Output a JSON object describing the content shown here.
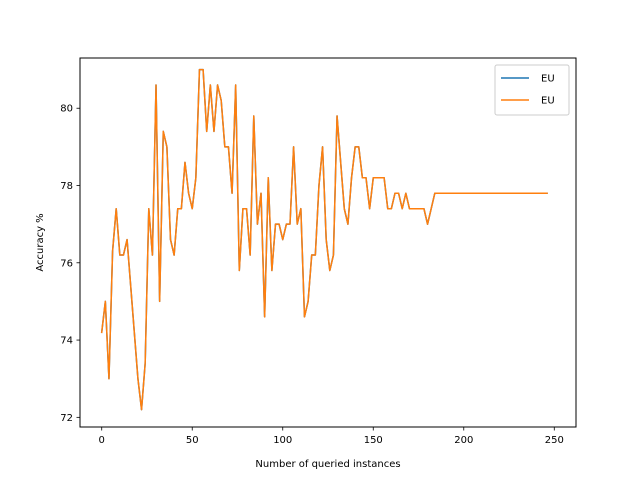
{
  "chart_data": {
    "type": "line",
    "title": "",
    "xlabel": "Number of queried instances",
    "ylabel": "Accuracy %",
    "xlim": [
      -12,
      262
    ],
    "ylim": [
      71.75,
      81.3
    ],
    "xticks": [
      0,
      50,
      100,
      150,
      200,
      250
    ],
    "yticks": [
      72,
      74,
      76,
      78,
      80
    ],
    "grid": false,
    "legend_position": "top-right",
    "series": [
      {
        "name": "EU",
        "color": "#1f77b4",
        "x": [
          0,
          2,
          4,
          6,
          8,
          10,
          12,
          14,
          16,
          18,
          20,
          22,
          24,
          26,
          28,
          30,
          32,
          34,
          36,
          38,
          40,
          42,
          44,
          46,
          48,
          50,
          52,
          54,
          56,
          58,
          60,
          62,
          64,
          66,
          68,
          70,
          72,
          74,
          76,
          78,
          80,
          82,
          84,
          86,
          88,
          90,
          92,
          94,
          96,
          98,
          100,
          102,
          104,
          106,
          108,
          110,
          112,
          114,
          116,
          118,
          120,
          122,
          124,
          126,
          128,
          130,
          132,
          134,
          136,
          138,
          140,
          142,
          144,
          146,
          148,
          150,
          152,
          154,
          156,
          158,
          160,
          162,
          164,
          166,
          168,
          170,
          172,
          174,
          176,
          178,
          180,
          184,
          246
        ],
        "y": [
          74.2,
          75.0,
          73.0,
          76.3,
          77.4,
          76.2,
          76.2,
          76.6,
          75.4,
          74.2,
          73.0,
          72.2,
          73.4,
          77.4,
          76.2,
          80.6,
          75.0,
          79.4,
          79.0,
          76.6,
          76.2,
          77.4,
          77.4,
          78.6,
          77.8,
          77.4,
          78.2,
          81.0,
          81.0,
          79.4,
          80.6,
          79.4,
          80.6,
          80.2,
          79.0,
          79.0,
          77.8,
          80.6,
          75.8,
          77.4,
          77.4,
          76.2,
          79.8,
          77.0,
          77.8,
          74.6,
          78.2,
          75.8,
          77.0,
          77.0,
          76.6,
          77.0,
          77.0,
          79.0,
          77.0,
          77.4,
          74.6,
          75.0,
          76.2,
          76.2,
          78.0,
          79.0,
          76.6,
          75.8,
          76.2,
          79.8,
          78.6,
          77.4,
          77.0,
          78.2,
          79.0,
          79.0,
          78.2,
          78.2,
          77.4,
          78.2,
          78.2,
          78.2,
          78.2,
          77.4,
          77.4,
          77.8,
          77.8,
          77.4,
          77.8,
          77.4,
          77.4,
          77.4,
          77.4,
          77.4,
          77.0,
          77.8,
          77.8
        ]
      },
      {
        "name": "EU",
        "color": "#ff7f0e",
        "x": [
          0,
          2,
          4,
          6,
          8,
          10,
          12,
          14,
          16,
          18,
          20,
          22,
          24,
          26,
          28,
          30,
          32,
          34,
          36,
          38,
          40,
          42,
          44,
          46,
          48,
          50,
          52,
          54,
          56,
          58,
          60,
          62,
          64,
          66,
          68,
          70,
          72,
          74,
          76,
          78,
          80,
          82,
          84,
          86,
          88,
          90,
          92,
          94,
          96,
          98,
          100,
          102,
          104,
          106,
          108,
          110,
          112,
          114,
          116,
          118,
          120,
          122,
          124,
          126,
          128,
          130,
          132,
          134,
          136,
          138,
          140,
          142,
          144,
          146,
          148,
          150,
          152,
          154,
          156,
          158,
          160,
          162,
          164,
          166,
          168,
          170,
          172,
          174,
          176,
          178,
          180,
          184,
          246
        ],
        "y": [
          74.2,
          75.0,
          73.0,
          76.3,
          77.4,
          76.2,
          76.2,
          76.6,
          75.4,
          74.2,
          73.0,
          72.2,
          73.4,
          77.4,
          76.2,
          80.6,
          75.0,
          79.4,
          79.0,
          76.6,
          76.2,
          77.4,
          77.4,
          78.6,
          77.8,
          77.4,
          78.2,
          81.0,
          81.0,
          79.4,
          80.6,
          79.4,
          80.6,
          80.2,
          79.0,
          79.0,
          77.8,
          80.6,
          75.8,
          77.4,
          77.4,
          76.2,
          79.8,
          77.0,
          77.8,
          74.6,
          78.2,
          75.8,
          77.0,
          77.0,
          76.6,
          77.0,
          77.0,
          79.0,
          77.0,
          77.4,
          74.6,
          75.0,
          76.2,
          76.2,
          78.0,
          79.0,
          76.6,
          75.8,
          76.2,
          79.8,
          78.6,
          77.4,
          77.0,
          78.2,
          79.0,
          79.0,
          78.2,
          78.2,
          77.4,
          78.2,
          78.2,
          78.2,
          78.2,
          77.4,
          77.4,
          77.8,
          77.8,
          77.4,
          77.8,
          77.4,
          77.4,
          77.4,
          77.4,
          77.4,
          77.0,
          77.8,
          77.8
        ]
      }
    ]
  }
}
